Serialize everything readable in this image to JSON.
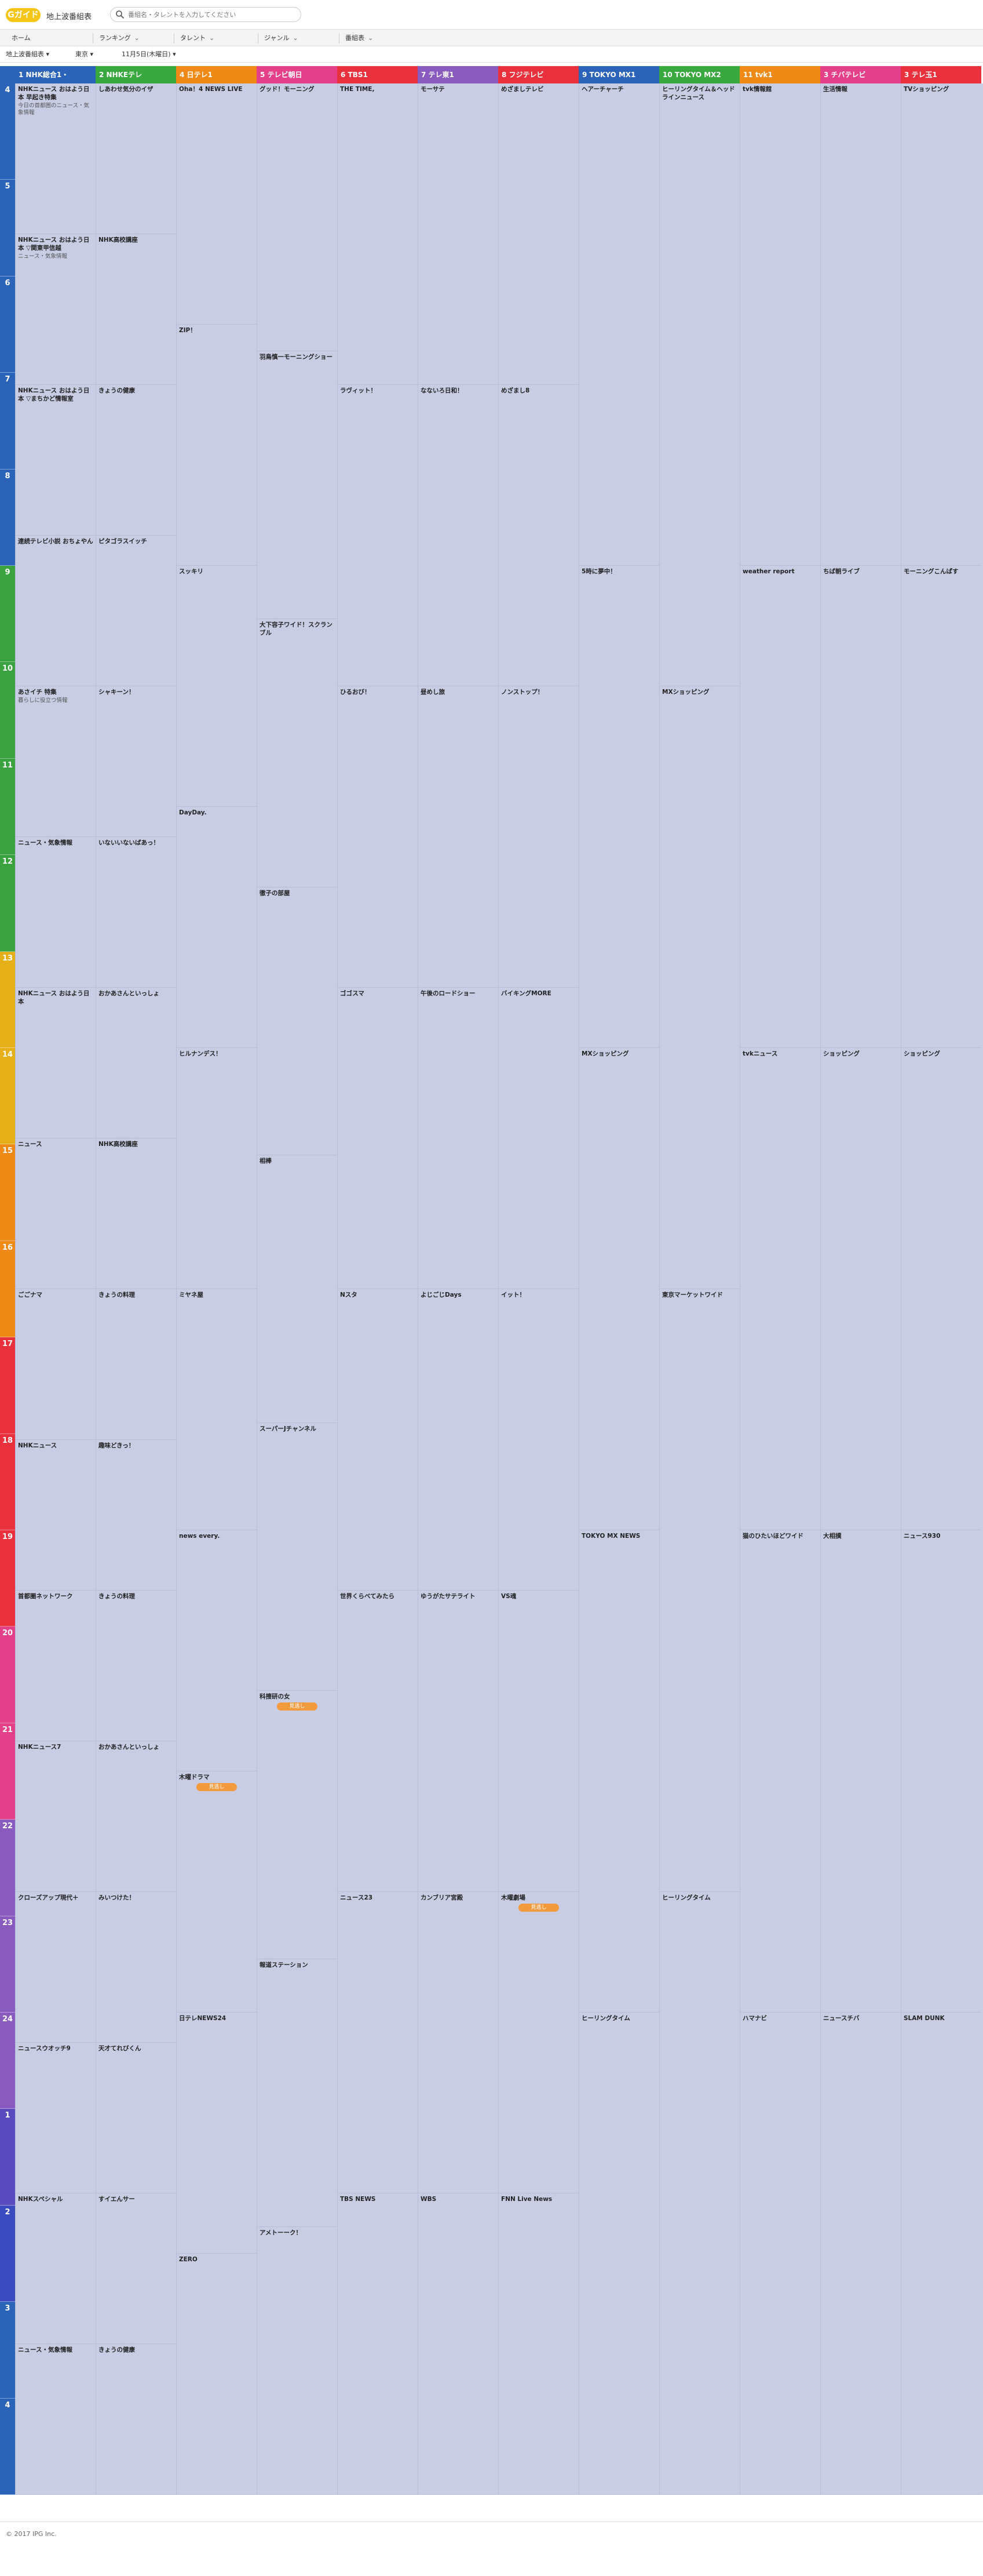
{
  "header": {
    "logo_text": "Gガイド",
    "site_title": "地上波番組表",
    "search_placeholder": "番組名・タレントを入力してください"
  },
  "nav": {
    "items": [
      {
        "label": "ホーム"
      },
      {
        "label": "ランキング"
      },
      {
        "label": "タレント"
      },
      {
        "label": "ジャンル"
      },
      {
        "label": "番組表"
      }
    ]
  },
  "filters": {
    "type": "地上波番組表",
    "area": "東京",
    "date": "11月5日(木曜日)"
  },
  "channels": [
    {
      "label": "1 NHK総合1・",
      "color": "#2a63b8"
    },
    {
      "label": "2 NHKEテレ",
      "color": "#39a83f"
    },
    {
      "label": "4 日テレ1",
      "color": "#f08a16"
    },
    {
      "label": "5 テレビ朝日",
      "color": "#e4408a"
    },
    {
      "label": "6 TBS1",
      "color": "#e8313d"
    },
    {
      "label": "7 テレ東1",
      "color": "#8a5bbf"
    },
    {
      "label": "8 フジテレビ",
      "color": "#e8313d"
    },
    {
      "label": "9 TOKYO MX1",
      "color": "#2a63b8"
    },
    {
      "label": "10 TOKYO MX2",
      "color": "#39a83f"
    },
    {
      "label": "11 tvk1",
      "color": "#f08a16"
    },
    {
      "label": "3 チバテレビ",
      "color": "#e4408a"
    },
    {
      "label": "3 テレ玉1",
      "color": "#e8313d"
    }
  ],
  "hours": [
    "4",
    "5",
    "6",
    "7",
    "8",
    "9",
    "10",
    "11",
    "12",
    "13",
    "14",
    "15",
    "16",
    "17",
    "18",
    "19",
    "20",
    "21",
    "22",
    "23",
    "24",
    "1",
    "2",
    "3",
    "4"
  ],
  "hour_colors": [
    "#2a63b8",
    "#2a63b8",
    "#2a63b8",
    "#2a63b8",
    "#2a63b8",
    "#3aa33f",
    "#3aa33f",
    "#3aa33f",
    "#3aa33f",
    "#e5b017",
    "#e5b017",
    "#f08a16",
    "#f08a16",
    "#e8313d",
    "#e8313d",
    "#e8313d",
    "#e4408a",
    "#e4408a",
    "#8a5bbf",
    "#8a5bbf",
    "#8a5bbf",
    "#5a4bbf",
    "#3a4bbf",
    "#2a63b8",
    "#2a63b8"
  ],
  "programs": [
    [
      {
        "title": "NHKニュース おはよう日本 早起き特集",
        "desc": "今日の首都圏のニュース・気象情報",
        "rec": false
      },
      {
        "title": "NHKニュース おはよう日本 ▽関東甲信越",
        "desc": "ニュース・気象情報",
        "rec": false
      },
      {
        "title": "NHKニュース おはよう日本 ▽まちかど情報室",
        "desc": "",
        "rec": false
      },
      {
        "title": "連続テレビ小説 おちょやん",
        "desc": "",
        "rec": false
      },
      {
        "title": "あさイチ 特集",
        "desc": "暮らしに役立つ情報",
        "rec": false
      },
      {
        "title": "ニュース・気象情報",
        "desc": "",
        "rec": false
      },
      {
        "title": "NHKニュース おはよう日本",
        "desc": "",
        "rec": false
      },
      {
        "title": "ニュース",
        "desc": "",
        "rec": false
      },
      {
        "title": "ごごナマ",
        "desc": "",
        "rec": false
      },
      {
        "title": "NHKニュース",
        "desc": "",
        "rec": false
      },
      {
        "title": "首都圏ネットワーク",
        "desc": "",
        "rec": false
      },
      {
        "title": "NHKニュース7",
        "desc": "",
        "rec": false
      },
      {
        "title": "クローズアップ現代＋",
        "desc": "",
        "rec": false
      },
      {
        "title": "ニュースウオッチ9",
        "desc": "",
        "rec": false
      },
      {
        "title": "NHKスペシャル",
        "desc": "",
        "rec": false
      },
      {
        "title": "ニュース・気象情報",
        "desc": "",
        "rec": false
      }
    ],
    [
      {
        "title": "しあわせ気分のイザ",
        "desc": "",
        "rec": false
      },
      {
        "title": "NHK高校講座",
        "desc": "",
        "rec": false
      },
      {
        "title": "きょうの健康",
        "desc": "",
        "rec": false
      },
      {
        "title": "ピタゴラスイッチ",
        "desc": "",
        "rec": false
      },
      {
        "title": "シャキーン！",
        "desc": "",
        "rec": false
      },
      {
        "title": "いないいないばあっ！",
        "desc": "",
        "rec": false
      },
      {
        "title": "おかあさんといっしょ",
        "desc": "",
        "rec": false
      },
      {
        "title": "NHK高校講座",
        "desc": "",
        "rec": false
      },
      {
        "title": "きょうの料理",
        "desc": "",
        "rec": false
      },
      {
        "title": "趣味どきっ！",
        "desc": "",
        "rec": false
      },
      {
        "title": "きょうの料理",
        "desc": "",
        "rec": false
      },
      {
        "title": "おかあさんといっしょ",
        "desc": "",
        "rec": false
      },
      {
        "title": "みいつけた！",
        "desc": "",
        "rec": false
      },
      {
        "title": "天才てれびくん",
        "desc": "",
        "rec": false
      },
      {
        "title": "すイエんサー",
        "desc": "",
        "rec": false
      },
      {
        "title": "きょうの健康",
        "desc": "",
        "rec": false
      }
    ],
    [
      {
        "title": "Oha！4 NEWS LIVE",
        "desc": "",
        "rec": false
      },
      {
        "title": "ZIP！",
        "desc": "",
        "rec": false
      },
      {
        "title": "スッキリ",
        "desc": "",
        "rec": false
      },
      {
        "title": "DayDay.",
        "desc": "",
        "rec": false
      },
      {
        "title": "ヒルナンデス！",
        "desc": "",
        "rec": false
      },
      {
        "title": "ミヤネ屋",
        "desc": "",
        "rec": false
      },
      {
        "title": "news every.",
        "desc": "",
        "rec": false
      },
      {
        "title": "木曜ドラマ",
        "desc": "",
        "rec": true
      },
      {
        "title": "日テレNEWS24",
        "desc": "",
        "rec": false
      },
      {
        "title": "ZERO",
        "desc": "",
        "rec": false
      }
    ],
    [
      {
        "title": "グッド！モーニング",
        "desc": "",
        "rec": false
      },
      {
        "title": "羽鳥慎一モーニングショー",
        "desc": "",
        "rec": false
      },
      {
        "title": "大下容子ワイド！スクランブル",
        "desc": "",
        "rec": false
      },
      {
        "title": "徹子の部屋",
        "desc": "",
        "rec": false
      },
      {
        "title": "相棒",
        "desc": "",
        "rec": false
      },
      {
        "title": "スーパーJチャンネル",
        "desc": "",
        "rec": false
      },
      {
        "title": "科捜研の女",
        "desc": "",
        "rec": true
      },
      {
        "title": "報道ステーション",
        "desc": "",
        "rec": false
      },
      {
        "title": "アメトーーク！",
        "desc": "",
        "rec": false
      }
    ],
    [
      {
        "title": "THE TIME,",
        "desc": "",
        "rec": false
      },
      {
        "title": "ラヴィット！",
        "desc": "",
        "rec": false
      },
      {
        "title": "ひるおび！",
        "desc": "",
        "rec": false
      },
      {
        "title": "ゴゴスマ",
        "desc": "",
        "rec": false
      },
      {
        "title": "Nスタ",
        "desc": "",
        "rec": false
      },
      {
        "title": "世界くらべてみたら",
        "desc": "",
        "rec": false
      },
      {
        "title": "ニュース23",
        "desc": "",
        "rec": false
      },
      {
        "title": "TBS NEWS",
        "desc": "",
        "rec": false
      }
    ],
    [
      {
        "title": "モーサテ",
        "desc": "",
        "rec": false
      },
      {
        "title": "なないろ日和！",
        "desc": "",
        "rec": false
      },
      {
        "title": "昼めし旅",
        "desc": "",
        "rec": false
      },
      {
        "title": "午後のロードショー",
        "desc": "",
        "rec": false
      },
      {
        "title": "よじごじDays",
        "desc": "",
        "rec": false
      },
      {
        "title": "ゆうがたサテライト",
        "desc": "",
        "rec": false
      },
      {
        "title": "カンブリア宮殿",
        "desc": "",
        "rec": false
      },
      {
        "title": "WBS",
        "desc": "",
        "rec": false
      }
    ],
    [
      {
        "title": "めざましテレビ",
        "desc": "",
        "rec": false
      },
      {
        "title": "めざまし8",
        "desc": "",
        "rec": false
      },
      {
        "title": "ノンストップ！",
        "desc": "",
        "rec": false
      },
      {
        "title": "バイキングMORE",
        "desc": "",
        "rec": false
      },
      {
        "title": "イット！",
        "desc": "",
        "rec": false
      },
      {
        "title": "VS魂",
        "desc": "",
        "rec": false
      },
      {
        "title": "木曜劇場",
        "desc": "",
        "rec": true
      },
      {
        "title": "FNN Live News",
        "desc": "",
        "rec": false
      }
    ],
    [
      {
        "title": "ヘアーチャーチ",
        "desc": "",
        "rec": false
      },
      {
        "title": "5時に夢中！",
        "desc": "",
        "rec": false
      },
      {
        "title": "MXショッピング",
        "desc": "",
        "rec": false
      },
      {
        "title": "TOKYO MX NEWS",
        "desc": "",
        "rec": false
      },
      {
        "title": "ヒーリングタイム",
        "desc": "",
        "rec": false
      }
    ],
    [
      {
        "title": "ヒーリングタイム＆ヘッドラインニュース",
        "desc": "",
        "rec": false
      },
      {
        "title": "MXショッピング",
        "desc": "",
        "rec": false
      },
      {
        "title": "東京マーケットワイド",
        "desc": "",
        "rec": false
      },
      {
        "title": "ヒーリングタイム",
        "desc": "",
        "rec": false
      }
    ],
    [
      {
        "title": "tvk情報館",
        "desc": "",
        "rec": false
      },
      {
        "title": "weather report",
        "desc": "",
        "rec": false
      },
      {
        "title": "tvkニュース",
        "desc": "",
        "rec": false
      },
      {
        "title": "猫のひたいほどワイド",
        "desc": "",
        "rec": false
      },
      {
        "title": "ハマナビ",
        "desc": "",
        "rec": false
      }
    ],
    [
      {
        "title": "生活情報",
        "desc": "",
        "rec": false
      },
      {
        "title": "ちば朝ライブ",
        "desc": "",
        "rec": false
      },
      {
        "title": "ショッピング",
        "desc": "",
        "rec": false
      },
      {
        "title": "大相撲",
        "desc": "",
        "rec": false
      },
      {
        "title": "ニュースチバ",
        "desc": "",
        "rec": false
      }
    ],
    [
      {
        "title": "TVショッピング",
        "desc": "",
        "rec": false
      },
      {
        "title": "モーニングこんぱす",
        "desc": "",
        "rec": false
      },
      {
        "title": "ショッピング",
        "desc": "",
        "rec": false
      },
      {
        "title": "ニュース930",
        "desc": "",
        "rec": false
      },
      {
        "title": "SLAM DUNK",
        "desc": "",
        "rec": false
      }
    ]
  ],
  "footer": {
    "copyright": "© 2017 IPG Inc."
  }
}
